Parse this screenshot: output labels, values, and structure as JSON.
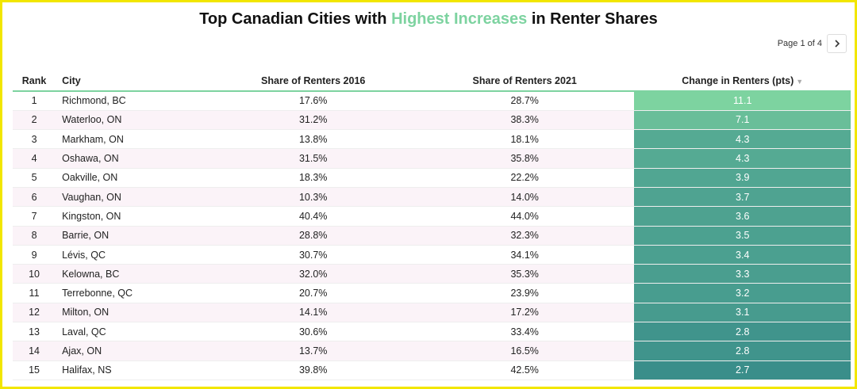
{
  "title": {
    "prefix": "Top Canadian Cities with ",
    "highlight": "Highest Increases",
    "suffix": " in Renter Shares"
  },
  "pager": {
    "label": "Page 1 of 4"
  },
  "colors": {
    "accent": "#7dd3a0",
    "heat_high": "#7dd3a0",
    "heat_low": "#3a8e8a"
  },
  "icons": {
    "next": "chevron-right-icon",
    "sort": "triangle-down-icon"
  },
  "chart_data": {
    "type": "table",
    "columns": [
      "Rank",
      "City",
      "Share of Renters 2016",
      "Share of Renters 2021",
      "Change in Renters (pts)"
    ],
    "sort": {
      "column": "Change in Renters (pts)",
      "direction": "descending"
    },
    "rows": [
      {
        "rank": "1",
        "city": "Richmond, BC",
        "share_2016": "17.6%",
        "share_2021": "28.7%",
        "change": "11.1"
      },
      {
        "rank": "2",
        "city": "Waterloo, ON",
        "share_2016": "31.2%",
        "share_2021": "38.3%",
        "change": "7.1"
      },
      {
        "rank": "3",
        "city": "Markham, ON",
        "share_2016": "13.8%",
        "share_2021": "18.1%",
        "change": "4.3"
      },
      {
        "rank": "4",
        "city": "Oshawa, ON",
        "share_2016": "31.5%",
        "share_2021": "35.8%",
        "change": "4.3"
      },
      {
        "rank": "5",
        "city": "Oakville, ON",
        "share_2016": "18.3%",
        "share_2021": "22.2%",
        "change": "3.9"
      },
      {
        "rank": "6",
        "city": "Vaughan, ON",
        "share_2016": "10.3%",
        "share_2021": "14.0%",
        "change": "3.7"
      },
      {
        "rank": "7",
        "city": "Kingston, ON",
        "share_2016": "40.4%",
        "share_2021": "44.0%",
        "change": "3.6"
      },
      {
        "rank": "8",
        "city": "Barrie, ON",
        "share_2016": "28.8%",
        "share_2021": "32.3%",
        "change": "3.5"
      },
      {
        "rank": "9",
        "city": "Lévis, QC",
        "share_2016": "30.7%",
        "share_2021": "34.1%",
        "change": "3.4"
      },
      {
        "rank": "10",
        "city": "Kelowna, BC",
        "share_2016": "32.0%",
        "share_2021": "35.3%",
        "change": "3.3"
      },
      {
        "rank": "11",
        "city": "Terrebonne, QC",
        "share_2016": "20.7%",
        "share_2021": "23.9%",
        "change": "3.2"
      },
      {
        "rank": "12",
        "city": "Milton, ON",
        "share_2016": "14.1%",
        "share_2021": "17.2%",
        "change": "3.1"
      },
      {
        "rank": "13",
        "city": "Laval, QC",
        "share_2016": "30.6%",
        "share_2021": "33.4%",
        "change": "2.8"
      },
      {
        "rank": "14",
        "city": "Ajax, ON",
        "share_2016": "13.7%",
        "share_2021": "16.5%",
        "change": "2.8"
      },
      {
        "rank": "15",
        "city": "Halifax, NS",
        "share_2016": "39.8%",
        "share_2021": "42.5%",
        "change": "2.7"
      }
    ]
  }
}
